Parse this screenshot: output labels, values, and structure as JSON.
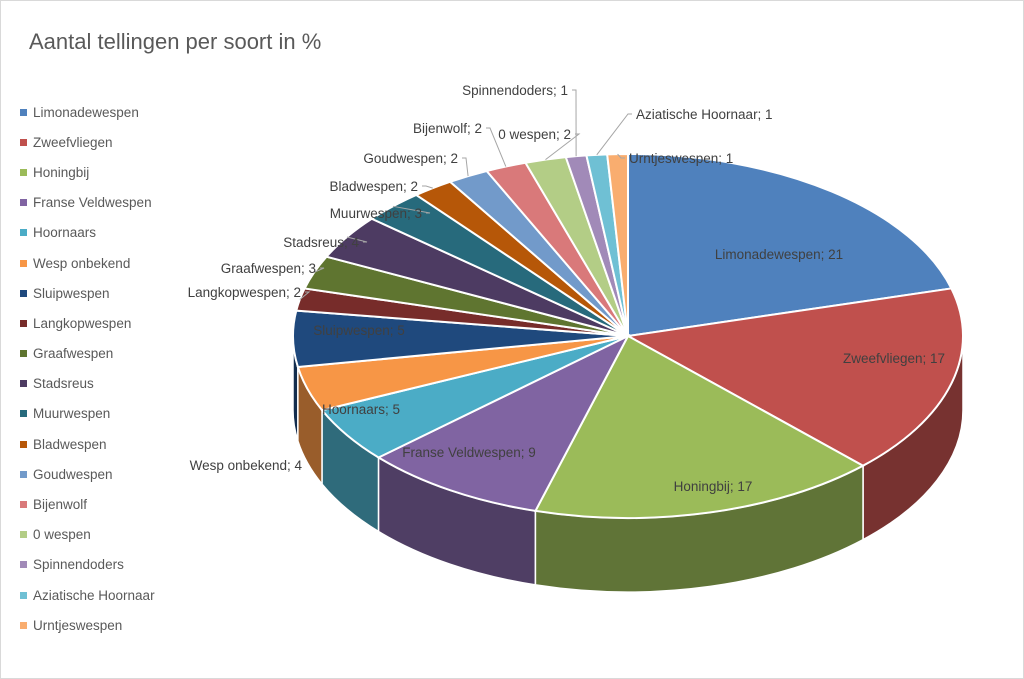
{
  "chart_data": {
    "type": "pie",
    "title": "Aantal tellingen per soort in %",
    "legend_position": "left",
    "slices": [
      {
        "label": "Limonadewespen",
        "value": 21,
        "color": "#4f81bd"
      },
      {
        "label": "Zweefvliegen",
        "value": 17,
        "color": "#c0504d"
      },
      {
        "label": "Honingbij",
        "value": 17,
        "color": "#9bbb59"
      },
      {
        "label": "Franse Veldwespen",
        "value": 9,
        "color": "#8064a2"
      },
      {
        "label": "Hoornaars",
        "value": 5,
        "color": "#4bacc6"
      },
      {
        "label": "Wesp onbekend",
        "value": 4,
        "color": "#f79646"
      },
      {
        "label": "Sluipwespen",
        "value": 5,
        "color": "#1f497d"
      },
      {
        "label": "Langkopwespen",
        "value": 2,
        "color": "#772c2a"
      },
      {
        "label": "Graafwespen",
        "value": 3,
        "color": "#5f7530"
      },
      {
        "label": "Stadsreus",
        "value": 4,
        "color": "#4d3b62"
      },
      {
        "label": "Muurwespen",
        "value": 3,
        "color": "#276a7c"
      },
      {
        "label": "Bladwespen",
        "value": 2,
        "color": "#b65708"
      },
      {
        "label": "Goudwespen",
        "value": 2,
        "color": "#729aca"
      },
      {
        "label": "Bijenwolf",
        "value": 2,
        "color": "#d9797a"
      },
      {
        "label": "0 wespen",
        "value": 2,
        "color": "#b3cd86"
      },
      {
        "label": "Spinnendoders",
        "value": 1,
        "color": "#a18ab8"
      },
      {
        "label": "Aziatische Hoornaar",
        "value": 1,
        "color": "#6fc0d4"
      },
      {
        "label": "Urntjeswespen",
        "value": 1,
        "color": "#f9ad6f"
      }
    ],
    "data_labels": [
      "Limonadewespen; 21",
      "Zweefvliegen; 17",
      "Honingbij; 17",
      "Franse Veldwespen; 9",
      "Hoornaars; 5",
      "Wesp onbekend; 4",
      "Sluipwespen; 5",
      "Langkopwespen; 2",
      "Graafwespen; 3",
      "Stadsreus; 4",
      "Muurwespen; 3",
      "Bladwespen; 2",
      "Goudwespen; 2",
      "Bijenwolf; 2",
      "0 wespen; 2",
      "Spinnendoders; 1",
      "Aziatische Hoornaar; 1",
      "Urntjeswespen; 1"
    ]
  }
}
